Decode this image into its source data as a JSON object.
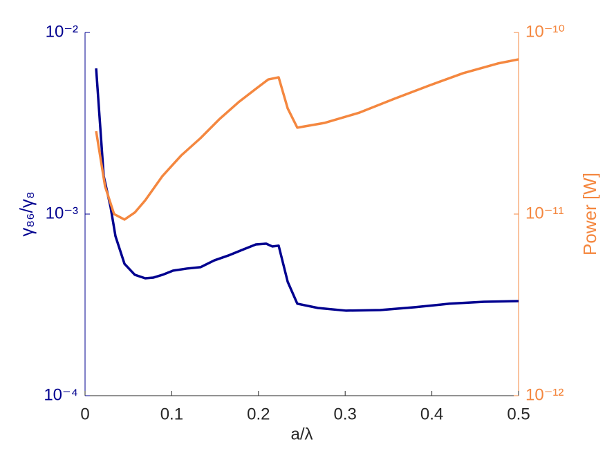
{
  "chart_data": {
    "type": "line",
    "x_label": "a/λ",
    "y_label": "γ₈₆/γ₈",
    "y2_label": "Power [W]",
    "xlim": [
      0,
      0.5
    ],
    "xticks": [
      0,
      0.1,
      0.2,
      0.3,
      0.4,
      0.5
    ],
    "ylim": [
      0.0001,
      0.01
    ],
    "y_scale": "log",
    "yticks": [
      {
        "value": 0.0001,
        "label": "10⁻⁴"
      },
      {
        "value": 0.001,
        "label": "10⁻³"
      },
      {
        "value": 0.01,
        "label": "10⁻²"
      }
    ],
    "y2lim": [
      1e-12,
      1e-10
    ],
    "y2_scale": "log",
    "y2ticks": [
      {
        "value": 1e-12,
        "label": "10⁻¹²"
      },
      {
        "value": 1e-11,
        "label": "10⁻¹¹"
      },
      {
        "value": 1e-10,
        "label": "10⁻¹⁰"
      }
    ],
    "y_color": "#00008f",
    "y2_color": "#f4873f",
    "series": [
      {
        "color": "#00008f",
        "x": [
          0.0128,
          0.0215,
          0.0295,
          0.0351,
          0.0455,
          0.0574,
          0.0694,
          0.0789,
          0.0893,
          0.1013,
          0.1172,
          0.1332,
          0.1491,
          0.1651,
          0.181,
          0.197,
          0.2089,
          0.2161,
          0.2233,
          0.2337,
          0.2448,
          0.2687,
          0.3006,
          0.3405,
          0.3804,
          0.4203,
          0.4601,
          0.5
        ],
        "values": [
          0.00634,
          0.00162,
          0.00109,
          0.000755,
          0.000532,
          0.000463,
          0.000443,
          0.000447,
          0.000463,
          0.000488,
          0.000501,
          0.00051,
          0.000556,
          0.000591,
          0.000634,
          0.00068,
          0.000687,
          0.000663,
          0.00067,
          0.000424,
          0.000321,
          0.000304,
          0.000294,
          0.000296,
          0.000307,
          0.000321,
          0.000329,
          0.000332
        ]
      },
      {
        "color": "#f4873f",
        "axis": "y2",
        "x": [
          0.0128,
          0.0231,
          0.0335,
          0.0455,
          0.0574,
          0.0694,
          0.0893,
          0.1108,
          0.1332,
          0.1555,
          0.177,
          0.1986,
          0.2113,
          0.2233,
          0.2337,
          0.2448,
          0.2767,
          0.3166,
          0.3565,
          0.3963,
          0.4362,
          0.4761,
          0.5
        ],
        "values": [
          2.86e-11,
          1.42e-11,
          1e-11,
          9.33e-12,
          1.02e-11,
          1.19e-11,
          1.62e-11,
          2.1e-11,
          2.62e-11,
          3.35e-11,
          4.13e-11,
          4.96e-11,
          5.51e-11,
          5.66e-11,
          3.82e-11,
          2.99e-11,
          3.18e-11,
          3.62e-11,
          4.31e-11,
          5.09e-11,
          5.97e-11,
          6.75e-11,
          7.11e-11
        ]
      }
    ]
  }
}
